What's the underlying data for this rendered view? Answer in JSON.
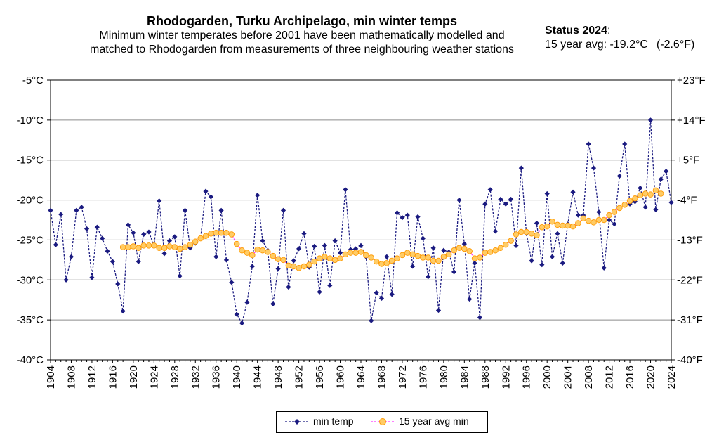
{
  "title": "Rhodogarden, Turku Archipelago, min winter temps",
  "subtitle_line1": "Minimum winter temperates before 2001 have been mathematically modelled and",
  "subtitle_line2": "matched to Rhodogarden from measurements of three neighbouring weather stations",
  "status": {
    "heading": "Status 2024",
    "heading_suffix": ":",
    "line_prefix": "15 year avg: -19.2°C",
    "line_suffix": "(-2.6°F)"
  },
  "chart_data": {
    "type": "line",
    "x_start": 1904,
    "x_end": 2024,
    "xlim": [
      1904,
      2024
    ],
    "x_ticks": [
      "1904",
      "1908",
      "1912",
      "1916",
      "1920",
      "1924",
      "1928",
      "1932",
      "1936",
      "1940",
      "1944",
      "1948",
      "1952",
      "1956",
      "1960",
      "1964",
      "1968",
      "1972",
      "1976",
      "1980",
      "1984",
      "1988",
      "1992",
      "1996",
      "2000",
      "2004",
      "2008",
      "2012",
      "2016",
      "2020",
      "2024"
    ],
    "ylim": [
      -40,
      -5
    ],
    "y_ticks_left": [
      "-5°C",
      "-10°C",
      "-15°C",
      "-20°C",
      "-25°C",
      "-30°C",
      "-35°C",
      "-40°C"
    ],
    "y_ticks_right": [
      "+23°F",
      "+14°F",
      "+5°F",
      "-4°F",
      "-13°F",
      "-22°F",
      "-31°F",
      "-40°F"
    ],
    "grid": "horizontal",
    "legend_position": "bottom",
    "series": [
      {
        "name": "min temp",
        "color": "#1a1a80",
        "marker": "diamond",
        "start_year": 1904,
        "values": [
          -21.3,
          -25.6,
          -21.8,
          -30,
          -27.1,
          -21.3,
          -20.9,
          -23.6,
          -29.7,
          -23.4,
          -24.8,
          -26.4,
          -27.7,
          -30.5,
          -33.9,
          -23.1,
          -24.1,
          -27.7,
          -24.3,
          -24,
          -25.7,
          -20.1,
          -26.7,
          -25.1,
          -24.6,
          -29.5,
          -21.3,
          -26,
          -25.4,
          -24.8,
          -18.9,
          -19.6,
          -27.1,
          -21.3,
          -27.5,
          -30.3,
          -34.3,
          -35.4,
          -32.8,
          -28.3,
          -19.4,
          -25.1,
          -26.3,
          -33,
          -28.6,
          -21.3,
          -30.9,
          -27.6,
          -26.1,
          -24.2,
          -28.4,
          -25.8,
          -31.5,
          -25.7,
          -30.7,
          -25.1,
          -26.6,
          -18.7,
          -26.2,
          -26.1,
          -25.7,
          -27.1,
          -35.1,
          -31.6,
          -32.3,
          -27.1,
          -31.8,
          -21.6,
          -22.2,
          -21.9,
          -28.3,
          -22.1,
          -24.8,
          -29.6,
          -26,
          -33.8,
          -26.3,
          -26.5,
          -29,
          -20,
          -25.5,
          -32.4,
          -27.9,
          -34.7,
          -20.5,
          -18.7,
          -23.9,
          -19.9,
          -20.5,
          -19.9,
          -25.7,
          -16,
          -24.2,
          -27.6,
          -22.9,
          -28.1,
          -19.2,
          -27.1,
          -24.2,
          -27.9,
          -23,
          -19,
          -21.9,
          -21.9,
          -13,
          -16,
          -21.5,
          -28.5,
          -22.5,
          -23,
          -17,
          -13,
          -20.5,
          -20.2,
          -18.5,
          -20.9,
          -10,
          -21.2,
          -17.4,
          -16.4,
          -20.3
        ]
      },
      {
        "name": "15 year avg min",
        "color": "#ff33ff",
        "marker": "circle",
        "marker_fill": "#ffcc66",
        "start_year": 1918,
        "values": [
          -25.9,
          -25.9,
          -25.8,
          -26,
          -25.7,
          -25.7,
          -25.7,
          -26,
          -26,
          -25.8,
          -25.9,
          -26.1,
          -25.9,
          -25.6,
          -25.2,
          -24.8,
          -24.5,
          -24.2,
          -24.1,
          -24.1,
          -24.1,
          -24.3,
          -25.5,
          -26.3,
          -26.6,
          -26.9,
          -26.2,
          -26.3,
          -26.5,
          -27,
          -27.4,
          -27.5,
          -28.2,
          -28.3,
          -28.5,
          -28.3,
          -28.1,
          -27.7,
          -27.3,
          -27.1,
          -27.3,
          -27.5,
          -27.3,
          -26.8,
          -26.6,
          -26.6,
          -26.5,
          -26.9,
          -27.2,
          -27.7,
          -28,
          -27.9,
          -27.6,
          -27.3,
          -26.9,
          -26.6,
          -26.8,
          -27,
          -27.2,
          -27.2,
          -27.6,
          -27.6,
          -27.1,
          -26.8,
          -26.3,
          -26,
          -26.1,
          -26.4,
          -27.3,
          -27.2,
          -26.6,
          -26.5,
          -26.3,
          -26,
          -25.6,
          -25.1,
          -24.3,
          -24,
          -24,
          -24.2,
          -24.4,
          -23.4,
          -23.3,
          -22.7,
          -23.1,
          -23.2,
          -23.2,
          -23.3,
          -22.9,
          -22.3,
          -22.6,
          -22.8,
          -22.5,
          -22.5,
          -21.9,
          -21.5,
          -21,
          -20.6,
          -20.1,
          -19.8,
          -19.4,
          -19.2,
          -19.3,
          -18.8,
          -19.2
        ]
      }
    ]
  }
}
